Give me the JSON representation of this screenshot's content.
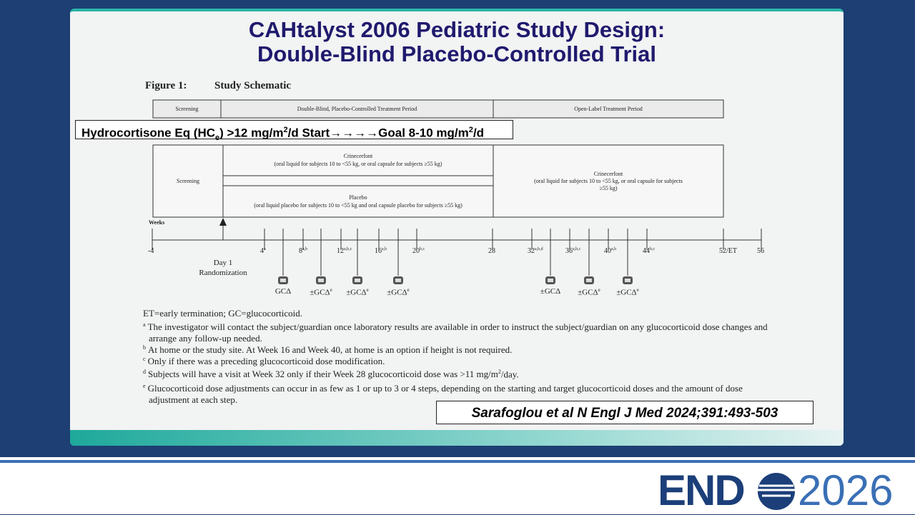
{
  "slide": {
    "title_lines": [
      "CAHtalyst 2006 Pediatric Study Design:",
      "Double-Blind Placebo-Controlled Trial"
    ],
    "figure": {
      "label": "Figure 1:",
      "caption": "Study Schematic"
    },
    "periods": [
      "Screening",
      "Double-Blind, Placebo-Controlled Treatment Period",
      "Open-Label Treatment Period"
    ],
    "banner": {
      "pre": "Hydrocortisone Eq (HC",
      "sub": "e",
      "mid": ") >12 mg/m",
      "sup1": "2",
      "mid2": "/d Start→→→→Goal 8-10 mg/m",
      "sup2": "2",
      "post": "/d"
    },
    "arms": {
      "screening": "Screening",
      "crinecerfont": [
        "Crinecerfont",
        "(oral liquid for subjects 10 to <55 kg, or oral capsule for subjects ≥55 kg)"
      ],
      "placebo": [
        "Placebo",
        "(oral liquid placebo for subjects 10 to <55 kg and oral capsule placebo for subjects ≥55 kg)"
      ],
      "open_label": [
        "Crinecerfont",
        "(oral liquid for subjects 10 to <55 kg, or oral capsule for subjects",
        "≥55 kg)"
      ]
    },
    "weeks_label": "Weeks",
    "weeks": [
      {
        "label": "-4",
        "sup": ""
      },
      {
        "label": "4",
        "sup": "a"
      },
      {
        "label": "8",
        "sup": "a,b"
      },
      {
        "label": "12",
        "sup": "a,b,c"
      },
      {
        "label": "16",
        "sup": "a,b"
      },
      {
        "label": "20",
        "sup": "b,c"
      },
      {
        "label": "28",
        "sup": ""
      },
      {
        "label": "32",
        "sup": "a,b,d"
      },
      {
        "label": "36",
        "sup": "a,b,c"
      },
      {
        "label": "40",
        "sup": "a,b"
      },
      {
        "label": "44",
        "sup": "b,c"
      },
      {
        "label": "52/ET",
        "sup": ""
      },
      {
        "label": "56",
        "sup": ""
      }
    ],
    "day1": [
      "Day 1",
      "Randomization"
    ],
    "calls": [
      {
        "text": "GCΔ",
        "sup": ""
      },
      {
        "text": "±GCΔ",
        "sup": "e"
      },
      {
        "text": "±GCΔ",
        "sup": "e"
      },
      {
        "text": "±GCΔ",
        "sup": "e"
      },
      {
        "text": "±GCΔ",
        "sup": ""
      },
      {
        "text": "±GCΔ",
        "sup": "e"
      },
      {
        "text": "±GCΔ",
        "sup": "e"
      }
    ],
    "abbrev": "ET=early termination; GC=glucocorticoid.",
    "footnotes": [
      {
        "mark": "a",
        "text": "The investigator will contact the subject/guardian once laboratory results are available in order to instruct the subject/guardian on any glucocorticoid dose changes and arrange any follow-up needed."
      },
      {
        "mark": "b",
        "text": "At home or the study site. At Week 16 and Week 40, at home is an option if height is not required."
      },
      {
        "mark": "c",
        "text": "Only if there was a preceding glucocorticoid dose modification."
      },
      {
        "mark": "d",
        "text": "Subjects will have a visit at Week 32 only if their Week 28 glucocorticoid dose was >11 mg/m",
        "sup": "2",
        "tail": "/day."
      },
      {
        "mark": "e",
        "text": "Glucocorticoid dose adjustments can occur in as few as 1 or up to 3 or 4 steps, depending on the starting and target glucocorticoid doses and the amount of dose adjustment at each step."
      }
    ],
    "citation": "Sarafoglou et al N Engl J Med 2024;391:493-503"
  },
  "logo": {
    "left": "END",
    "right": "2026"
  }
}
